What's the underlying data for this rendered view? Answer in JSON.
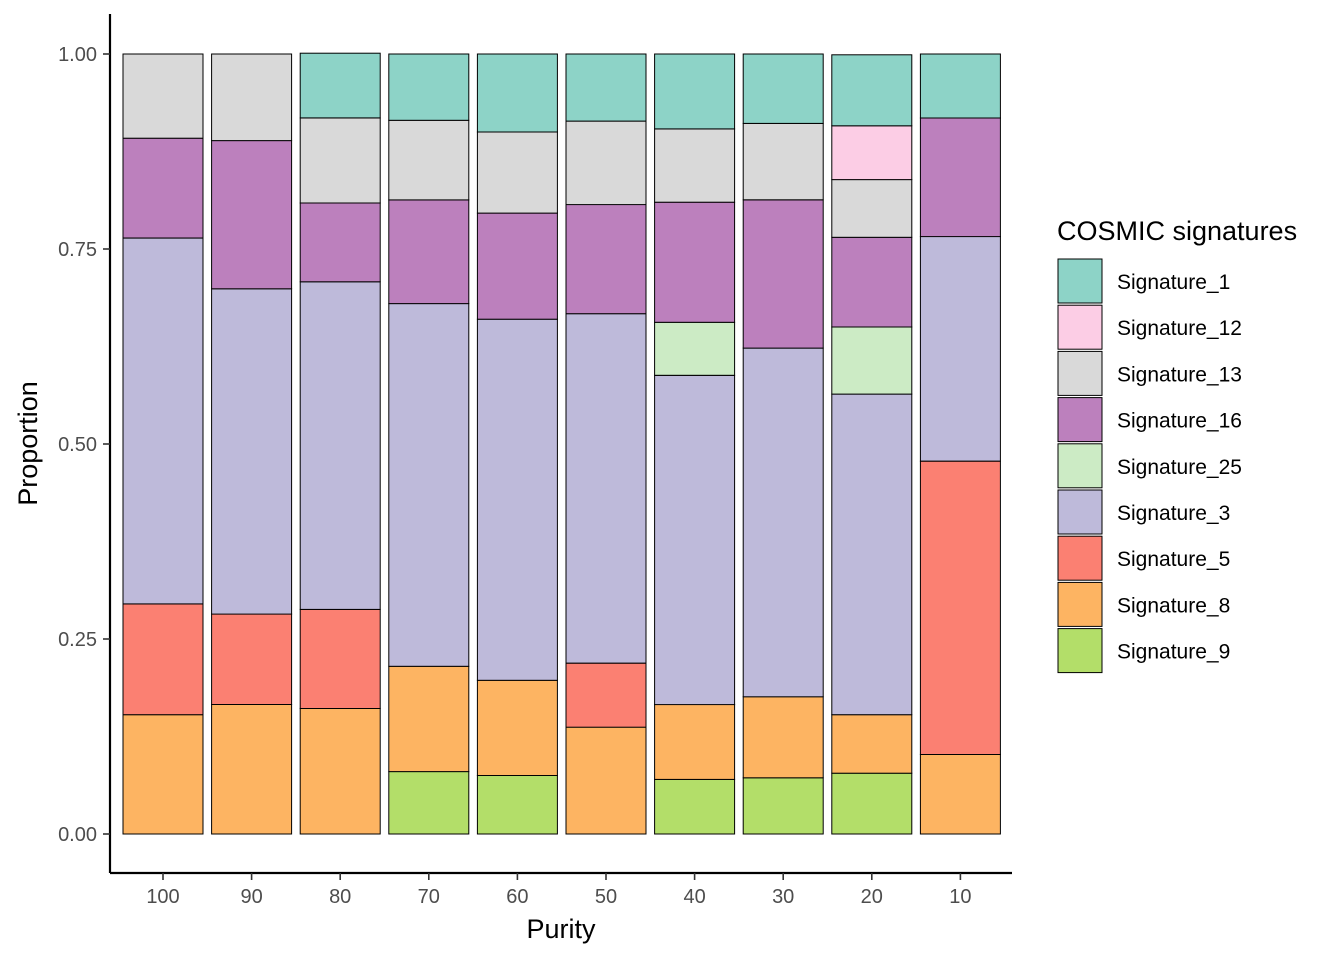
{
  "chart_data": {
    "type": "bar",
    "stacked": true,
    "xlabel": "Purity",
    "ylabel": "Proportion",
    "ylim": [
      0,
      1
    ],
    "yticks": [
      "0.00",
      "0.25",
      "0.50",
      "0.75",
      "1.00"
    ],
    "categories": [
      "100",
      "90",
      "80",
      "70",
      "60",
      "50",
      "40",
      "30",
      "20",
      "10"
    ],
    "legend": {
      "title": "COSMIC signatures",
      "placement": "right",
      "entries": [
        "Signature_1",
        "Signature_12",
        "Signature_13",
        "Signature_16",
        "Signature_25",
        "Signature_3",
        "Signature_5",
        "Signature_8",
        "Signature_9"
      ]
    },
    "stack_order": [
      "Signature_9",
      "Signature_8",
      "Signature_5",
      "Signature_3",
      "Signature_25",
      "Signature_16",
      "Signature_13",
      "Signature_12",
      "Signature_1"
    ],
    "series": [
      {
        "name": "Signature_1",
        "color": "#8DD3C7",
        "values": [
          0,
          0,
          0.083,
          0.085,
          0.1,
          0.086,
          0.096,
          0.089,
          0.091,
          0.082
        ]
      },
      {
        "name": "Signature_12",
        "color": "#FCCDE5",
        "values": [
          0,
          0,
          0,
          0,
          0,
          0,
          0,
          0,
          0.069,
          0
        ]
      },
      {
        "name": "Signature_13",
        "color": "#D9D9D9",
        "values": [
          0.108,
          0.111,
          0.109,
          0.102,
          0.104,
          0.107,
          0.094,
          0.098,
          0.074,
          0
        ]
      },
      {
        "name": "Signature_16",
        "color": "#BC80BD",
        "values": [
          0.128,
          0.19,
          0.101,
          0.133,
          0.136,
          0.14,
          0.154,
          0.19,
          0.115,
          0.152
        ]
      },
      {
        "name": "Signature_25",
        "color": "#CCEBC5",
        "values": [
          0,
          0,
          0,
          0,
          0,
          0,
          0.068,
          0,
          0.086,
          0
        ]
      },
      {
        "name": "Signature_3",
        "color": "#BEBADA",
        "values": [
          0.469,
          0.417,
          0.42,
          0.465,
          0.463,
          0.448,
          0.422,
          0.447,
          0.411,
          0.288
        ]
      },
      {
        "name": "Signature_5",
        "color": "#FB8072",
        "values": [
          0.142,
          0.116,
          0.127,
          0,
          0,
          0.082,
          0,
          0,
          0,
          0.376
        ]
      },
      {
        "name": "Signature_8",
        "color": "#FDB462",
        "values": [
          0.153,
          0.166,
          0.161,
          0.135,
          0.122,
          0.137,
          0.096,
          0.104,
          0.075,
          0.102
        ]
      },
      {
        "name": "Signature_9",
        "color": "#B3DE69",
        "values": [
          0,
          0,
          0,
          0.08,
          0.075,
          0,
          0.07,
          0.072,
          0.078,
          0
        ]
      }
    ]
  }
}
